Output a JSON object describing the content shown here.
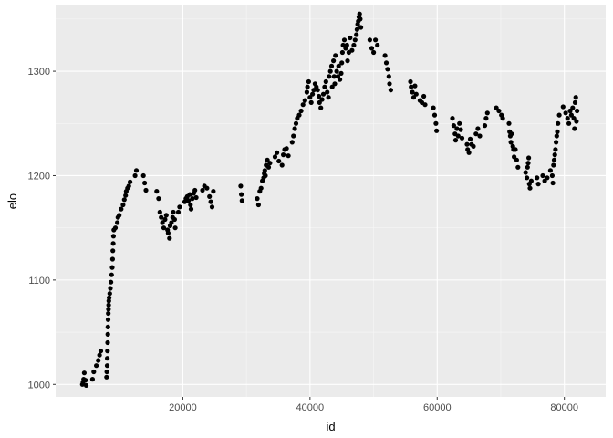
{
  "chart_data": {
    "type": "scatter",
    "title": "",
    "xlabel": "id",
    "ylabel": "elo",
    "xlim": [
      0,
      86500
    ],
    "ylim": [
      988,
      1363
    ],
    "x_ticks": [
      20000,
      40000,
      60000,
      80000
    ],
    "x_tick_labels": [
      "20000",
      "40000",
      "60000",
      "80000"
    ],
    "y_ticks": [
      1000,
      1100,
      1200,
      1300
    ],
    "y_tick_labels": [
      "1000",
      "1100",
      "1200",
      "1300"
    ],
    "grid": true,
    "legend": "none",
    "colors": {
      "panel_bg": "#ebebeb",
      "grid_major": "#ffffff",
      "grid_minor": "#f7f7f7",
      "point": "#000000"
    },
    "points": [
      [
        4200,
        1000
      ],
      [
        4300,
        1002
      ],
      [
        4400,
        1005
      ],
      [
        4500,
        1011
      ],
      [
        4700,
        1004
      ],
      [
        4800,
        999
      ],
      [
        5800,
        1005
      ],
      [
        6000,
        1012
      ],
      [
        6400,
        1018
      ],
      [
        6700,
        1023
      ],
      [
        6900,
        1028
      ],
      [
        7100,
        1032
      ],
      [
        8000,
        1007
      ],
      [
        8050,
        1012
      ],
      [
        8100,
        1018
      ],
      [
        8120,
        1025
      ],
      [
        8150,
        1032
      ],
      [
        8180,
        1040
      ],
      [
        8200,
        1048
      ],
      [
        8220,
        1055
      ],
      [
        8250,
        1062
      ],
      [
        8280,
        1068
      ],
      [
        8300,
        1072
      ],
      [
        8330,
        1076
      ],
      [
        8360,
        1080
      ],
      [
        8400,
        1083
      ],
      [
        8500,
        1087
      ],
      [
        8600,
        1092
      ],
      [
        8700,
        1098
      ],
      [
        8800,
        1105
      ],
      [
        8900,
        1112
      ],
      [
        8950,
        1120
      ],
      [
        9000,
        1128
      ],
      [
        9050,
        1135
      ],
      [
        9100,
        1142
      ],
      [
        9150,
        1148
      ],
      [
        9400,
        1150
      ],
      [
        9700,
        1155
      ],
      [
        9800,
        1160
      ],
      [
        10000,
        1162
      ],
      [
        10300,
        1168
      ],
      [
        10600,
        1172
      ],
      [
        10800,
        1177
      ],
      [
        11000,
        1181
      ],
      [
        11100,
        1185
      ],
      [
        11300,
        1188
      ],
      [
        11500,
        1190
      ],
      [
        11700,
        1194
      ],
      [
        12500,
        1200
      ],
      [
        12700,
        1205
      ],
      [
        13800,
        1200
      ],
      [
        14000,
        1193
      ],
      [
        14200,
        1186
      ],
      [
        15900,
        1185
      ],
      [
        16200,
        1178
      ],
      [
        16400,
        1165
      ],
      [
        16600,
        1160
      ],
      [
        16800,
        1155
      ],
      [
        17000,
        1150
      ],
      [
        17200,
        1158
      ],
      [
        17400,
        1162
      ],
      [
        17600,
        1148
      ],
      [
        17700,
        1145
      ],
      [
        17900,
        1140
      ],
      [
        18000,
        1152
      ],
      [
        18200,
        1155
      ],
      [
        18400,
        1160
      ],
      [
        18500,
        1165
      ],
      [
        18700,
        1158
      ],
      [
        18800,
        1150
      ],
      [
        19300,
        1165
      ],
      [
        19500,
        1170
      ],
      [
        20300,
        1175
      ],
      [
        20500,
        1178
      ],
      [
        20700,
        1180
      ],
      [
        20900,
        1176
      ],
      [
        21100,
        1182
      ],
      [
        21200,
        1172
      ],
      [
        21300,
        1168
      ],
      [
        21500,
        1178
      ],
      [
        21700,
        1183
      ],
      [
        21900,
        1186
      ],
      [
        22100,
        1179
      ],
      [
        23100,
        1186
      ],
      [
        23400,
        1190
      ],
      [
        23800,
        1188
      ],
      [
        24200,
        1180
      ],
      [
        24400,
        1175
      ],
      [
        24600,
        1170
      ],
      [
        24800,
        1185
      ],
      [
        29100,
        1190
      ],
      [
        29200,
        1182
      ],
      [
        29300,
        1176
      ],
      [
        31700,
        1178
      ],
      [
        31900,
        1172
      ],
      [
        32100,
        1185
      ],
      [
        32300,
        1188
      ],
      [
        32500,
        1195
      ],
      [
        32700,
        1198
      ],
      [
        32800,
        1202
      ],
      [
        32900,
        1205
      ],
      [
        33000,
        1200
      ],
      [
        33100,
        1210
      ],
      [
        33300,
        1215
      ],
      [
        33500,
        1208
      ],
      [
        33700,
        1212
      ],
      [
        34500,
        1218
      ],
      [
        34800,
        1222
      ],
      [
        35100,
        1214
      ],
      [
        35600,
        1210
      ],
      [
        35800,
        1220
      ],
      [
        36000,
        1225
      ],
      [
        36300,
        1226
      ],
      [
        36600,
        1219
      ],
      [
        37200,
        1232
      ],
      [
        37400,
        1238
      ],
      [
        37600,
        1245
      ],
      [
        37800,
        1250
      ],
      [
        38000,
        1255
      ],
      [
        38300,
        1258
      ],
      [
        38600,
        1262
      ],
      [
        38900,
        1268
      ],
      [
        39200,
        1272
      ],
      [
        39500,
        1280
      ],
      [
        39600,
        1285
      ],
      [
        39800,
        1290
      ],
      [
        40000,
        1275
      ],
      [
        40200,
        1270
      ],
      [
        40400,
        1278
      ],
      [
        40600,
        1282
      ],
      [
        40800,
        1288
      ],
      [
        41000,
        1285
      ],
      [
        41200,
        1282
      ],
      [
        41400,
        1276
      ],
      [
        41500,
        1270
      ],
      [
        41700,
        1265
      ],
      [
        41900,
        1273
      ],
      [
        42100,
        1278
      ],
      [
        42300,
        1285
      ],
      [
        42500,
        1290
      ],
      [
        42700,
        1280
      ],
      [
        42900,
        1275
      ],
      [
        43000,
        1295
      ],
      [
        43200,
        1300
      ],
      [
        43400,
        1305
      ],
      [
        43500,
        1285
      ],
      [
        43700,
        1310
      ],
      [
        43800,
        1295
      ],
      [
        43900,
        1288
      ],
      [
        44000,
        1315
      ],
      [
        44200,
        1300
      ],
      [
        44400,
        1295
      ],
      [
        44500,
        1305
      ],
      [
        44700,
        1292
      ],
      [
        44900,
        1298
      ],
      [
        45000,
        1308
      ],
      [
        45100,
        1318
      ],
      [
        45200,
        1325
      ],
      [
        45400,
        1330
      ],
      [
        45600,
        1322
      ],
      [
        45800,
        1325
      ],
      [
        45900,
        1310
      ],
      [
        46100,
        1318
      ],
      [
        46300,
        1332
      ],
      [
        46600,
        1320
      ],
      [
        46900,
        1325
      ],
      [
        47100,
        1330
      ],
      [
        47300,
        1335
      ],
      [
        47400,
        1340
      ],
      [
        47500,
        1345
      ],
      [
        47600,
        1348
      ],
      [
        47700,
        1352
      ],
      [
        47800,
        1355
      ],
      [
        47900,
        1350
      ],
      [
        48000,
        1342
      ],
      [
        49400,
        1330
      ],
      [
        49700,
        1322
      ],
      [
        50000,
        1318
      ],
      [
        50300,
        1330
      ],
      [
        50600,
        1325
      ],
      [
        51800,
        1315
      ],
      [
        52000,
        1308
      ],
      [
        52200,
        1302
      ],
      [
        52400,
        1295
      ],
      [
        52500,
        1288
      ],
      [
        52700,
        1282
      ],
      [
        55800,
        1290
      ],
      [
        55900,
        1285
      ],
      [
        56100,
        1280
      ],
      [
        56300,
        1275
      ],
      [
        56500,
        1286
      ],
      [
        56700,
        1278
      ],
      [
        57300,
        1272
      ],
      [
        57600,
        1270
      ],
      [
        57900,
        1276
      ],
      [
        58100,
        1268
      ],
      [
        59400,
        1265
      ],
      [
        59600,
        1258
      ],
      [
        59800,
        1250
      ],
      [
        59900,
        1243
      ],
      [
        62400,
        1255
      ],
      [
        62600,
        1248
      ],
      [
        62800,
        1240
      ],
      [
        62900,
        1234
      ],
      [
        63100,
        1245
      ],
      [
        63300,
        1238
      ],
      [
        63500,
        1250
      ],
      [
        63700,
        1244
      ],
      [
        63900,
        1236
      ],
      [
        64700,
        1230
      ],
      [
        64800,
        1225
      ],
      [
        65000,
        1222
      ],
      [
        65200,
        1235
      ],
      [
        65400,
        1230
      ],
      [
        65700,
        1228
      ],
      [
        66100,
        1240
      ],
      [
        66400,
        1245
      ],
      [
        66700,
        1238
      ],
      [
        67500,
        1248
      ],
      [
        67700,
        1255
      ],
      [
        67900,
        1260
      ],
      [
        69300,
        1265
      ],
      [
        69700,
        1262
      ],
      [
        70100,
        1258
      ],
      [
        70300,
        1255
      ],
      [
        71300,
        1250
      ],
      [
        71400,
        1242
      ],
      [
        71500,
        1238
      ],
      [
        71600,
        1232
      ],
      [
        71700,
        1240
      ],
      [
        71900,
        1228
      ],
      [
        72000,
        1225
      ],
      [
        72100,
        1218
      ],
      [
        72300,
        1225
      ],
      [
        72500,
        1215
      ],
      [
        72700,
        1208
      ],
      [
        73900,
        1203
      ],
      [
        74100,
        1198
      ],
      [
        74200,
        1208
      ],
      [
        74300,
        1212
      ],
      [
        74400,
        1217
      ],
      [
        74500,
        1192
      ],
      [
        74600,
        1188
      ],
      [
        74800,
        1195
      ],
      [
        75700,
        1198
      ],
      [
        75900,
        1192
      ],
      [
        76600,
        1200
      ],
      [
        76900,
        1195
      ],
      [
        77300,
        1198
      ],
      [
        77800,
        1205
      ],
      [
        78100,
        1200
      ],
      [
        78200,
        1193
      ],
      [
        78300,
        1210
      ],
      [
        78400,
        1215
      ],
      [
        78500,
        1220
      ],
      [
        78600,
        1225
      ],
      [
        78700,
        1232
      ],
      [
        78800,
        1238
      ],
      [
        78900,
        1242
      ],
      [
        79000,
        1250
      ],
      [
        79200,
        1258
      ],
      [
        79800,
        1266
      ],
      [
        80200,
        1260
      ],
      [
        80500,
        1255
      ],
      [
        80700,
        1250
      ],
      [
        80900,
        1262
      ],
      [
        81100,
        1258
      ],
      [
        81300,
        1265
      ],
      [
        81500,
        1255
      ],
      [
        81600,
        1245
      ],
      [
        81700,
        1270
      ],
      [
        81800,
        1275
      ],
      [
        81900,
        1252
      ],
      [
        82000,
        1262
      ]
    ]
  }
}
